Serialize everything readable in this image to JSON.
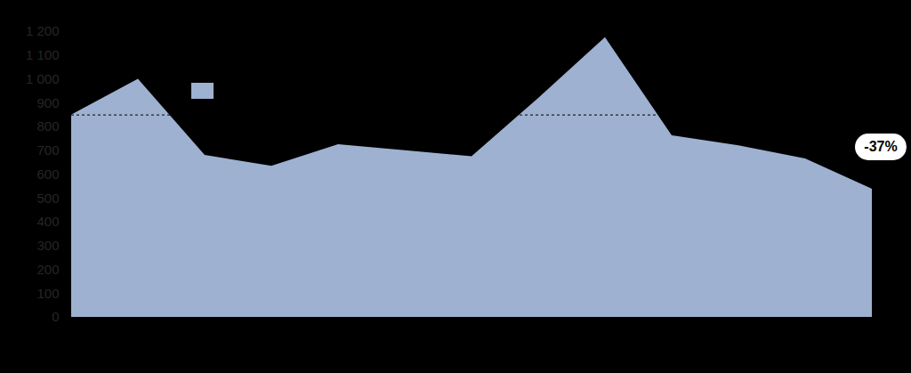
{
  "chart_data": {
    "type": "area",
    "categories": [
      null,
      null,
      null,
      null,
      null,
      null,
      null,
      null,
      null,
      null,
      null,
      null,
      null
    ],
    "values": [
      850,
      1000,
      680,
      635,
      725,
      700,
      675,
      920,
      1175,
      763,
      721,
      665,
      538
    ],
    "color": "#9eb1d0",
    "ylim": [
      0,
      1200
    ],
    "yticks": [
      0,
      100,
      200,
      300,
      400,
      500,
      600,
      700,
      800,
      900,
      {
        "value": 1000,
        "label": "1 000"
      },
      {
        "value": 1100,
        "label": "1 100"
      },
      {
        "value": 1200,
        "label": "1 200"
      }
    ],
    "reference_line": {
      "value": 850,
      "line_style": "dashed"
    },
    "annotation": "-37%",
    "legend": "top-left",
    "tick_labels": "y"
  }
}
